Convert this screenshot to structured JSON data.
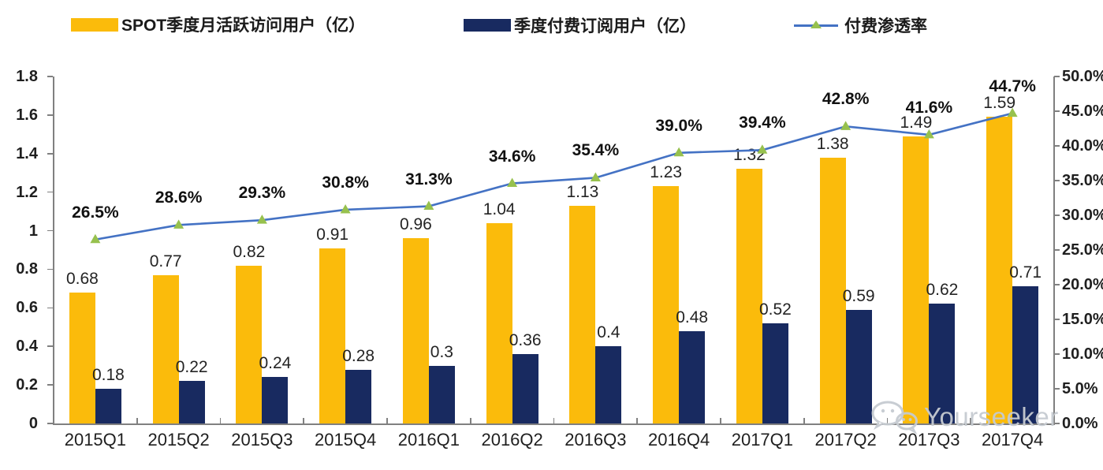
{
  "legend": {
    "mau_label": "SPOT季度月活跃访问用户（亿）",
    "sub_label": "季度付费订阅用户（亿）",
    "pct_label": "付费渗透率"
  },
  "watermark": {
    "text": "Yourseeker"
  },
  "colors": {
    "bar_mau": "#FBBB0B",
    "bar_sub": "#182A60",
    "line": "#4472C4",
    "marker": "#97C14E",
    "axis": "#808080",
    "label_text": "#242424",
    "watermark": "#C6CBD1"
  },
  "chart_data": {
    "type": "bar",
    "subtype": "grouped-bars-with-line",
    "title": "",
    "xlabel": "",
    "ylabel_left": "",
    "ylabel_right": "",
    "grid": false,
    "legend_position": "top",
    "categories": [
      "2015Q1",
      "2015Q2",
      "2015Q3",
      "2015Q4",
      "2016Q1",
      "2016Q2",
      "2016Q3",
      "2016Q4",
      "2017Q1",
      "2017Q2",
      "2017Q3",
      "2017Q4"
    ],
    "series": [
      {
        "name": "SPOT季度月活跃访问用户（亿）",
        "type": "bar",
        "axis": "left",
        "color": "#FBBB0B",
        "values": [
          0.68,
          0.77,
          0.82,
          0.91,
          0.96,
          1.04,
          1.13,
          1.23,
          1.32,
          1.38,
          1.49,
          1.59
        ],
        "labels": [
          "0.68",
          "0.77",
          "0.82",
          "0.91",
          "0.96",
          "1.04",
          "1.13",
          "1.23",
          "1.32",
          "1.38",
          "1.49",
          "1.59"
        ]
      },
      {
        "name": "季度付费订阅用户（亿）",
        "type": "bar",
        "axis": "left",
        "color": "#182A60",
        "values": [
          0.18,
          0.22,
          0.24,
          0.28,
          0.3,
          0.36,
          0.4,
          0.48,
          0.52,
          0.59,
          0.62,
          0.71
        ],
        "labels": [
          "0.18",
          "0.22",
          "0.24",
          "0.28",
          "0.3",
          "0.36",
          "0.4",
          "0.48",
          "0.52",
          "0.59",
          "0.62",
          "0.71"
        ]
      },
      {
        "name": "付费渗透率",
        "type": "line",
        "axis": "right",
        "color": "#4472C4",
        "marker": "triangle-up",
        "marker_color": "#97C14E",
        "values": [
          26.5,
          28.6,
          29.3,
          30.8,
          31.3,
          34.6,
          35.4,
          39.0,
          39.4,
          42.8,
          41.6,
          44.7
        ],
        "labels": [
          "26.5%",
          "28.6%",
          "29.3%",
          "30.8%",
          "31.3%",
          "34.6%",
          "35.4%",
          "39.0%",
          "39.4%",
          "42.8%",
          "41.6%",
          "44.7%"
        ]
      }
    ],
    "left_axis": {
      "min": 0,
      "max": 1.8,
      "step": 0.2,
      "ticks": [
        "0",
        "0.2",
        "0.4",
        "0.6",
        "0.8",
        "1",
        "1.2",
        "1.4",
        "1.6",
        "1.8"
      ]
    },
    "right_axis": {
      "min": 0,
      "max": 50,
      "step": 5,
      "ticks": [
        "0.0%",
        "5.0%",
        "10.0%",
        "15.0%",
        "20.0%",
        "25.0%",
        "30.0%",
        "35.0%",
        "40.0%",
        "45.0%",
        "50.0%"
      ]
    }
  }
}
